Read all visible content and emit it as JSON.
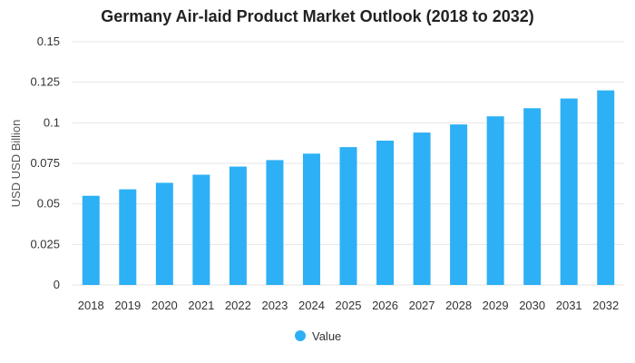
{
  "chart_data": {
    "type": "bar",
    "title": "Germany Air-laid Product Market Outlook (2018 to 2032)",
    "xlabel": "",
    "ylabel": "USD USD Billion",
    "categories": [
      "2018",
      "2019",
      "2020",
      "2021",
      "2022",
      "2023",
      "2024",
      "2025",
      "2026",
      "2027",
      "2028",
      "2029",
      "2030",
      "2031",
      "2032"
    ],
    "series": [
      {
        "name": "Value",
        "values": [
          0.055,
          0.059,
          0.063,
          0.068,
          0.073,
          0.077,
          0.081,
          0.085,
          0.089,
          0.094,
          0.099,
          0.104,
          0.109,
          0.115,
          0.12
        ]
      }
    ],
    "ylim": [
      0,
      0.15
    ],
    "yticks": [
      "0",
      "0.025",
      "0.05",
      "0.075",
      "0.1",
      "0.125",
      "0.15"
    ],
    "ytick_values": [
      0,
      0.025,
      0.05,
      0.075,
      0.1,
      0.125,
      0.15
    ],
    "grid": true,
    "legend_position": "bottom",
    "colors": {
      "bar": "#2DB0F5",
      "grid": "#e6e6e6"
    }
  }
}
